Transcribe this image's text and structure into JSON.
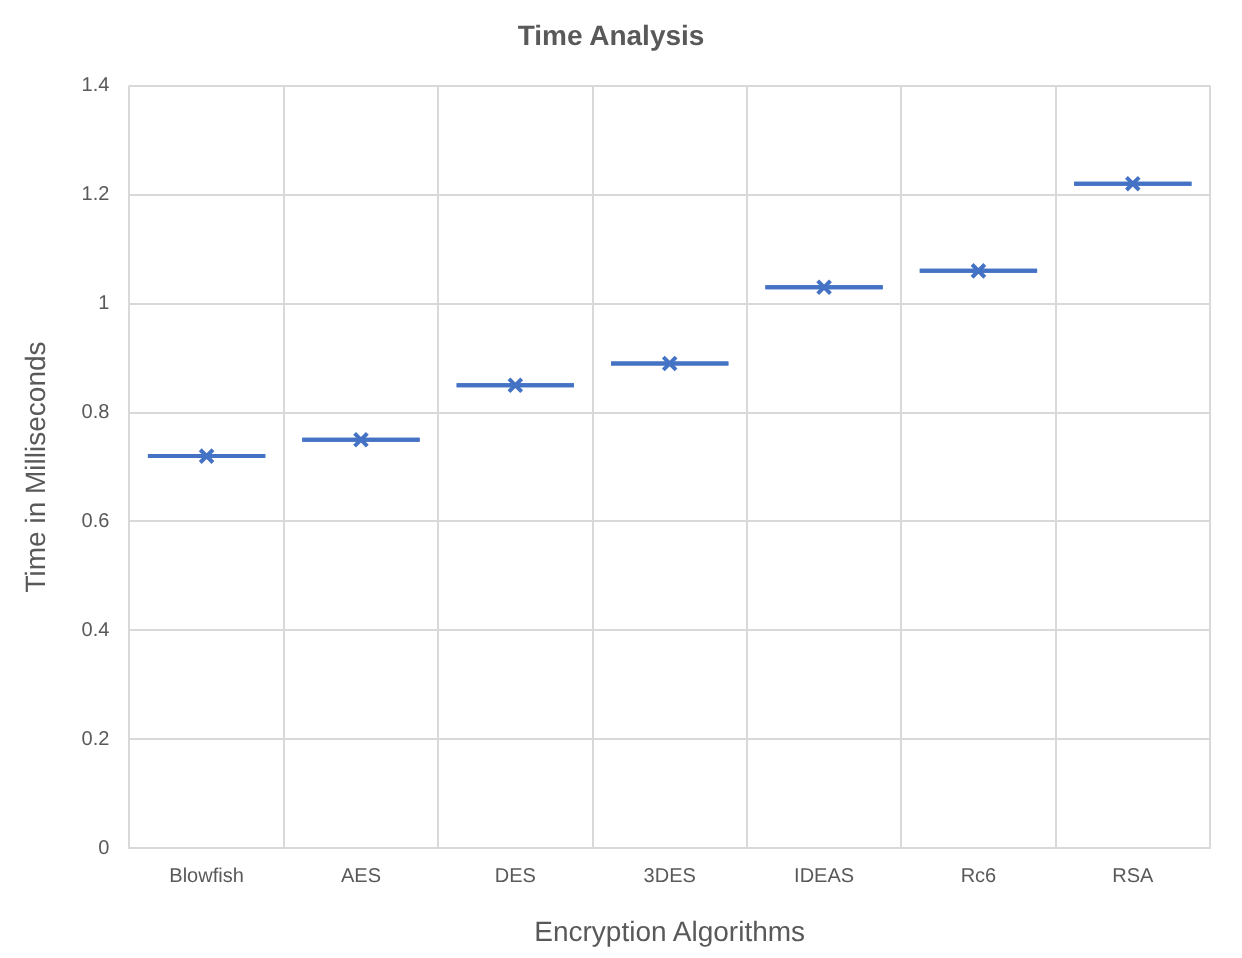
{
  "chart_data": {
    "type": "box",
    "title": "Time Analysis",
    "xlabel": "Encryption Algorithms",
    "ylabel": "Time in Milliseconds",
    "categories": [
      "Blowfish",
      "AES",
      "DES",
      "3DES",
      "IDEAS",
      "Rc6",
      "RSA"
    ],
    "color": "#4472c4",
    "boxes": [
      {
        "low": 0.72,
        "q1": 0.72,
        "median": 0.72,
        "q3": 0.72,
        "high": 0.72,
        "mean": 0.72
      },
      {
        "low": 0.75,
        "q1": 0.75,
        "median": 0.75,
        "q3": 0.75,
        "high": 0.75,
        "mean": 0.75
      },
      {
        "low": 0.85,
        "q1": 0.85,
        "median": 0.85,
        "q3": 0.85,
        "high": 0.85,
        "mean": 0.85
      },
      {
        "low": 0.89,
        "q1": 0.89,
        "median": 0.89,
        "q3": 0.89,
        "high": 0.89,
        "mean": 0.89
      },
      {
        "low": 1.03,
        "q1": 1.03,
        "median": 1.03,
        "q3": 1.03,
        "high": 1.03,
        "mean": 1.03
      },
      {
        "low": 1.06,
        "q1": 1.06,
        "median": 1.06,
        "q3": 1.06,
        "high": 1.06,
        "mean": 1.06
      },
      {
        "low": 1.22,
        "q1": 1.22,
        "median": 1.22,
        "q3": 1.22,
        "high": 1.22,
        "mean": 1.22
      }
    ],
    "ylim": [
      0,
      1.4
    ],
    "yticks": [
      0,
      0.2,
      0.4,
      0.6,
      0.8,
      1,
      1.2,
      1.4
    ],
    "grid": true,
    "marker": "cross"
  }
}
